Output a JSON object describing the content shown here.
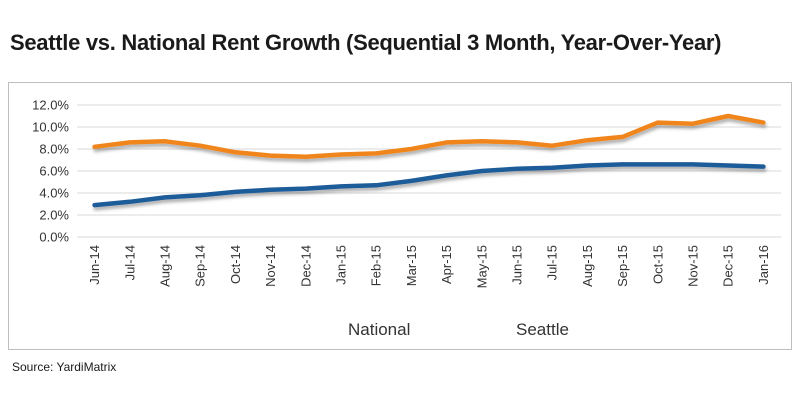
{
  "title": "Seattle vs. National Rent Growth (Sequential 3 Month, Year-Over-Year)",
  "source": "Source: YardiMatrix",
  "chart_data": {
    "type": "line",
    "title": "Seattle vs. National Rent Growth (Sequential 3 Month, Year-Over-Year)",
    "xlabel": "",
    "ylabel": "",
    "categories": [
      "Jun-14",
      "Jul-14",
      "Aug-14",
      "Sep-14",
      "Oct-14",
      "Nov-14",
      "Dec-14",
      "Jan-15",
      "Feb-15",
      "Mar-15",
      "Apr-15",
      "May-15",
      "Jun-15",
      "Jul-15",
      "Aug-15",
      "Sep-15",
      "Oct-15",
      "Nov-15",
      "Dec-15",
      "Jan-16"
    ],
    "ylim": [
      0,
      12
    ],
    "yticks": [
      0,
      2,
      4,
      6,
      8,
      10,
      12
    ],
    "ytick_labels": [
      "0.0%",
      "2.0%",
      "4.0%",
      "6.0%",
      "8.0%",
      "10.0%",
      "12.0%"
    ],
    "grid": true,
    "legend_position": "bottom",
    "series": [
      {
        "name": "National",
        "color": "#1f5c99",
        "values": [
          2.9,
          3.2,
          3.6,
          3.8,
          4.1,
          4.3,
          4.4,
          4.6,
          4.7,
          5.1,
          5.6,
          6.0,
          6.2,
          6.3,
          6.5,
          6.6,
          6.6,
          6.6,
          6.5,
          6.4
        ]
      },
      {
        "name": "Seattle",
        "color": "#f0851f",
        "values": [
          8.2,
          8.6,
          8.7,
          8.3,
          7.7,
          7.4,
          7.3,
          7.5,
          7.6,
          8.0,
          8.6,
          8.7,
          8.6,
          8.3,
          8.8,
          9.1,
          10.4,
          10.3,
          11.0,
          10.4
        ]
      }
    ]
  }
}
